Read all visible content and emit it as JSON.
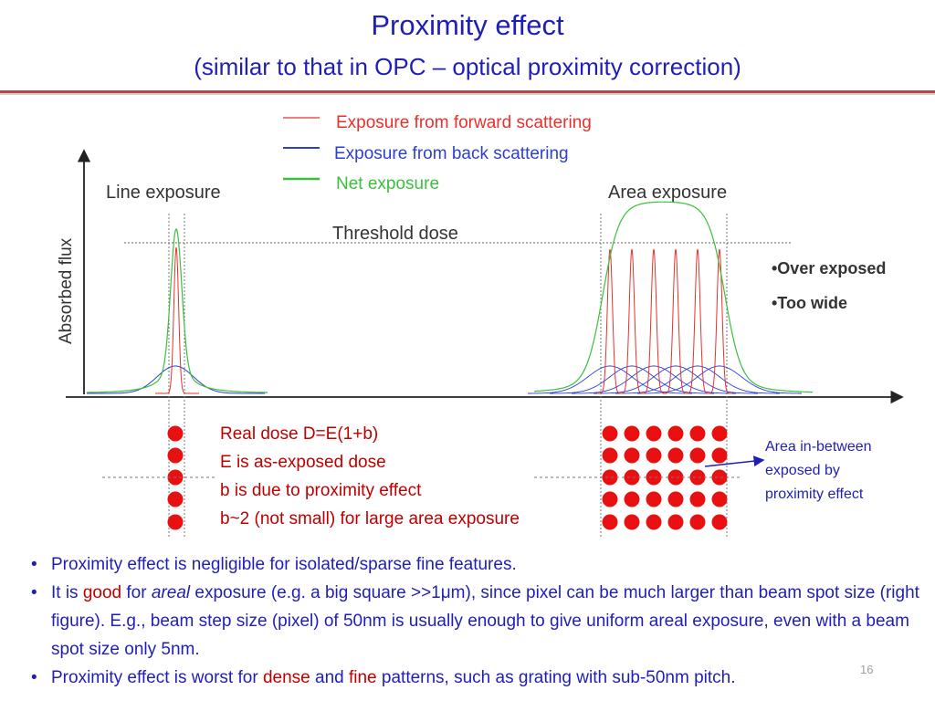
{
  "title": "Proximity effect",
  "subtitle": "(similar to that in OPC – optical proximity correction)",
  "figure": {
    "legend": [
      {
        "label": "Exposure from forward scattering",
        "color": "#e8312c"
      },
      {
        "label": "Exposure from back scattering",
        "color": "#2d3fd0"
      },
      {
        "label": "Net exposure",
        "color": "#3cbf3c"
      }
    ],
    "y_axis_label": "Absorbed flux",
    "line_exposure_label": "Line exposure",
    "area_exposure_label": "Area exposure",
    "threshold_label": "Threshold dose",
    "over_exposed": "•Over exposed",
    "too_wide": "•Too wide"
  },
  "dose_note": [
    "Real dose D=E(1+b)",
    "E is as-exposed dose",
    "b is due to proximity effect",
    "b~2 (not small) for large area exposure"
  ],
  "callout": [
    "Area in-between",
    "exposed by",
    "proximity effect"
  ],
  "bullets": {
    "b1": "Proximity effect is negligible for isolated/sparse fine features.",
    "b2_pre": "It is ",
    "b2_good": "good",
    "b2_for": " for ",
    "b2_areal": "areal",
    "b2_rest": " exposure (e.g. a big square >>1μm), since pixel can be much larger than beam spot size (right figure). E.g., beam step size (pixel) of 50nm is usually enough to give uniform areal exposure, even with a beam spot size only 5nm.",
    "b3_pre": "Proximity effect is worst for ",
    "b3_dense": "dense",
    "b3_and": " and ",
    "b3_fine": "fine",
    "b3_rest": " patterns, such as grating with sub-50nm pitch."
  },
  "page_number": "16",
  "colors": {
    "accent_blue": "#1f1fb8",
    "accent_red": "#c00000",
    "dot_red": "#e81010"
  }
}
